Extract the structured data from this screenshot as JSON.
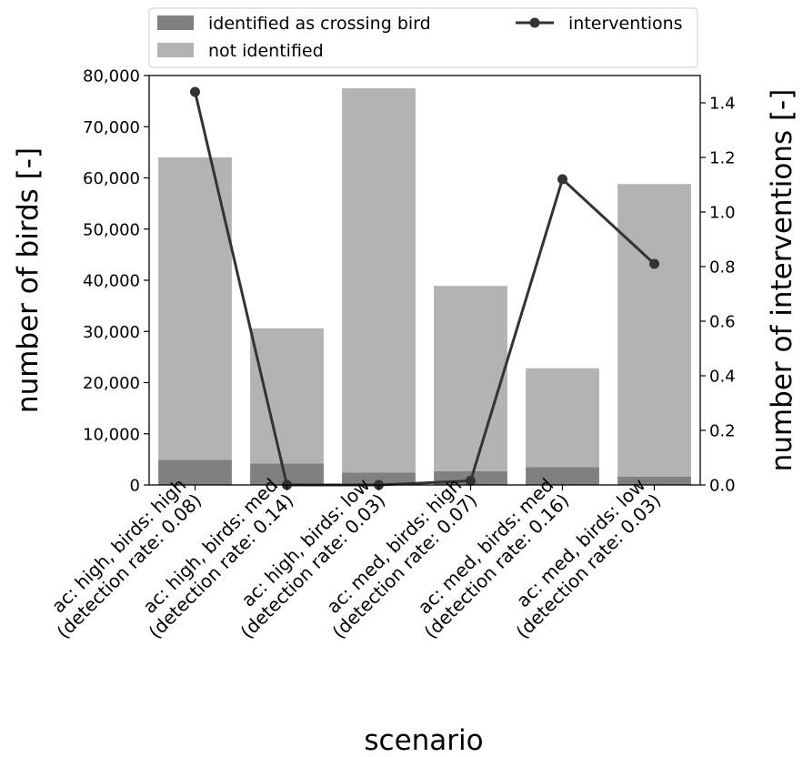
{
  "chart_data": {
    "type": "bar",
    "xlabel": "scenario",
    "ylabel": "number of birds [-]",
    "y2label": "number of interventions [-]",
    "ylim": [
      0,
      80000
    ],
    "y2lim": [
      0,
      1.5
    ],
    "yticks": [
      "0",
      "10,000",
      "20,000",
      "30,000",
      "40,000",
      "50,000",
      "60,000",
      "70,000",
      "80,000"
    ],
    "y2ticks": [
      "0.0",
      "0.2",
      "0.4",
      "0.6",
      "0.8",
      "1.0",
      "1.2",
      "1.4"
    ],
    "categories": [
      [
        "ac: high, birds: high",
        "(detection rate: 0.08)"
      ],
      [
        "ac: high, birds: med",
        "(detection rate: 0.14)"
      ],
      [
        "ac: high, birds: low",
        "(detection rate: 0.03)"
      ],
      [
        "ac: med, birds: high",
        "(detection rate: 0.07)"
      ],
      [
        "ac: med, birds: med",
        "(detection rate: 0.16)"
      ],
      [
        "ac: med, birds: low",
        "(detection rate: 0.03)"
      ]
    ],
    "series": [
      {
        "name": "identified as crossing bird",
        "kind": "bar",
        "axis": "left",
        "color": "#808080",
        "values": [
          4900,
          4200,
          2400,
          2700,
          3500,
          1600
        ]
      },
      {
        "name": "not identified",
        "kind": "bar",
        "axis": "left",
        "color": "#b3b3b3",
        "values": [
          59100,
          26400,
          75100,
          36200,
          19300,
          57200
        ]
      },
      {
        "name": "interventions",
        "kind": "line",
        "axis": "right",
        "color": "#333333",
        "values": [
          1.44,
          0.0,
          0.0,
          0.015,
          1.12,
          0.81
        ]
      }
    ],
    "stacked": true,
    "legend_position": "top"
  }
}
